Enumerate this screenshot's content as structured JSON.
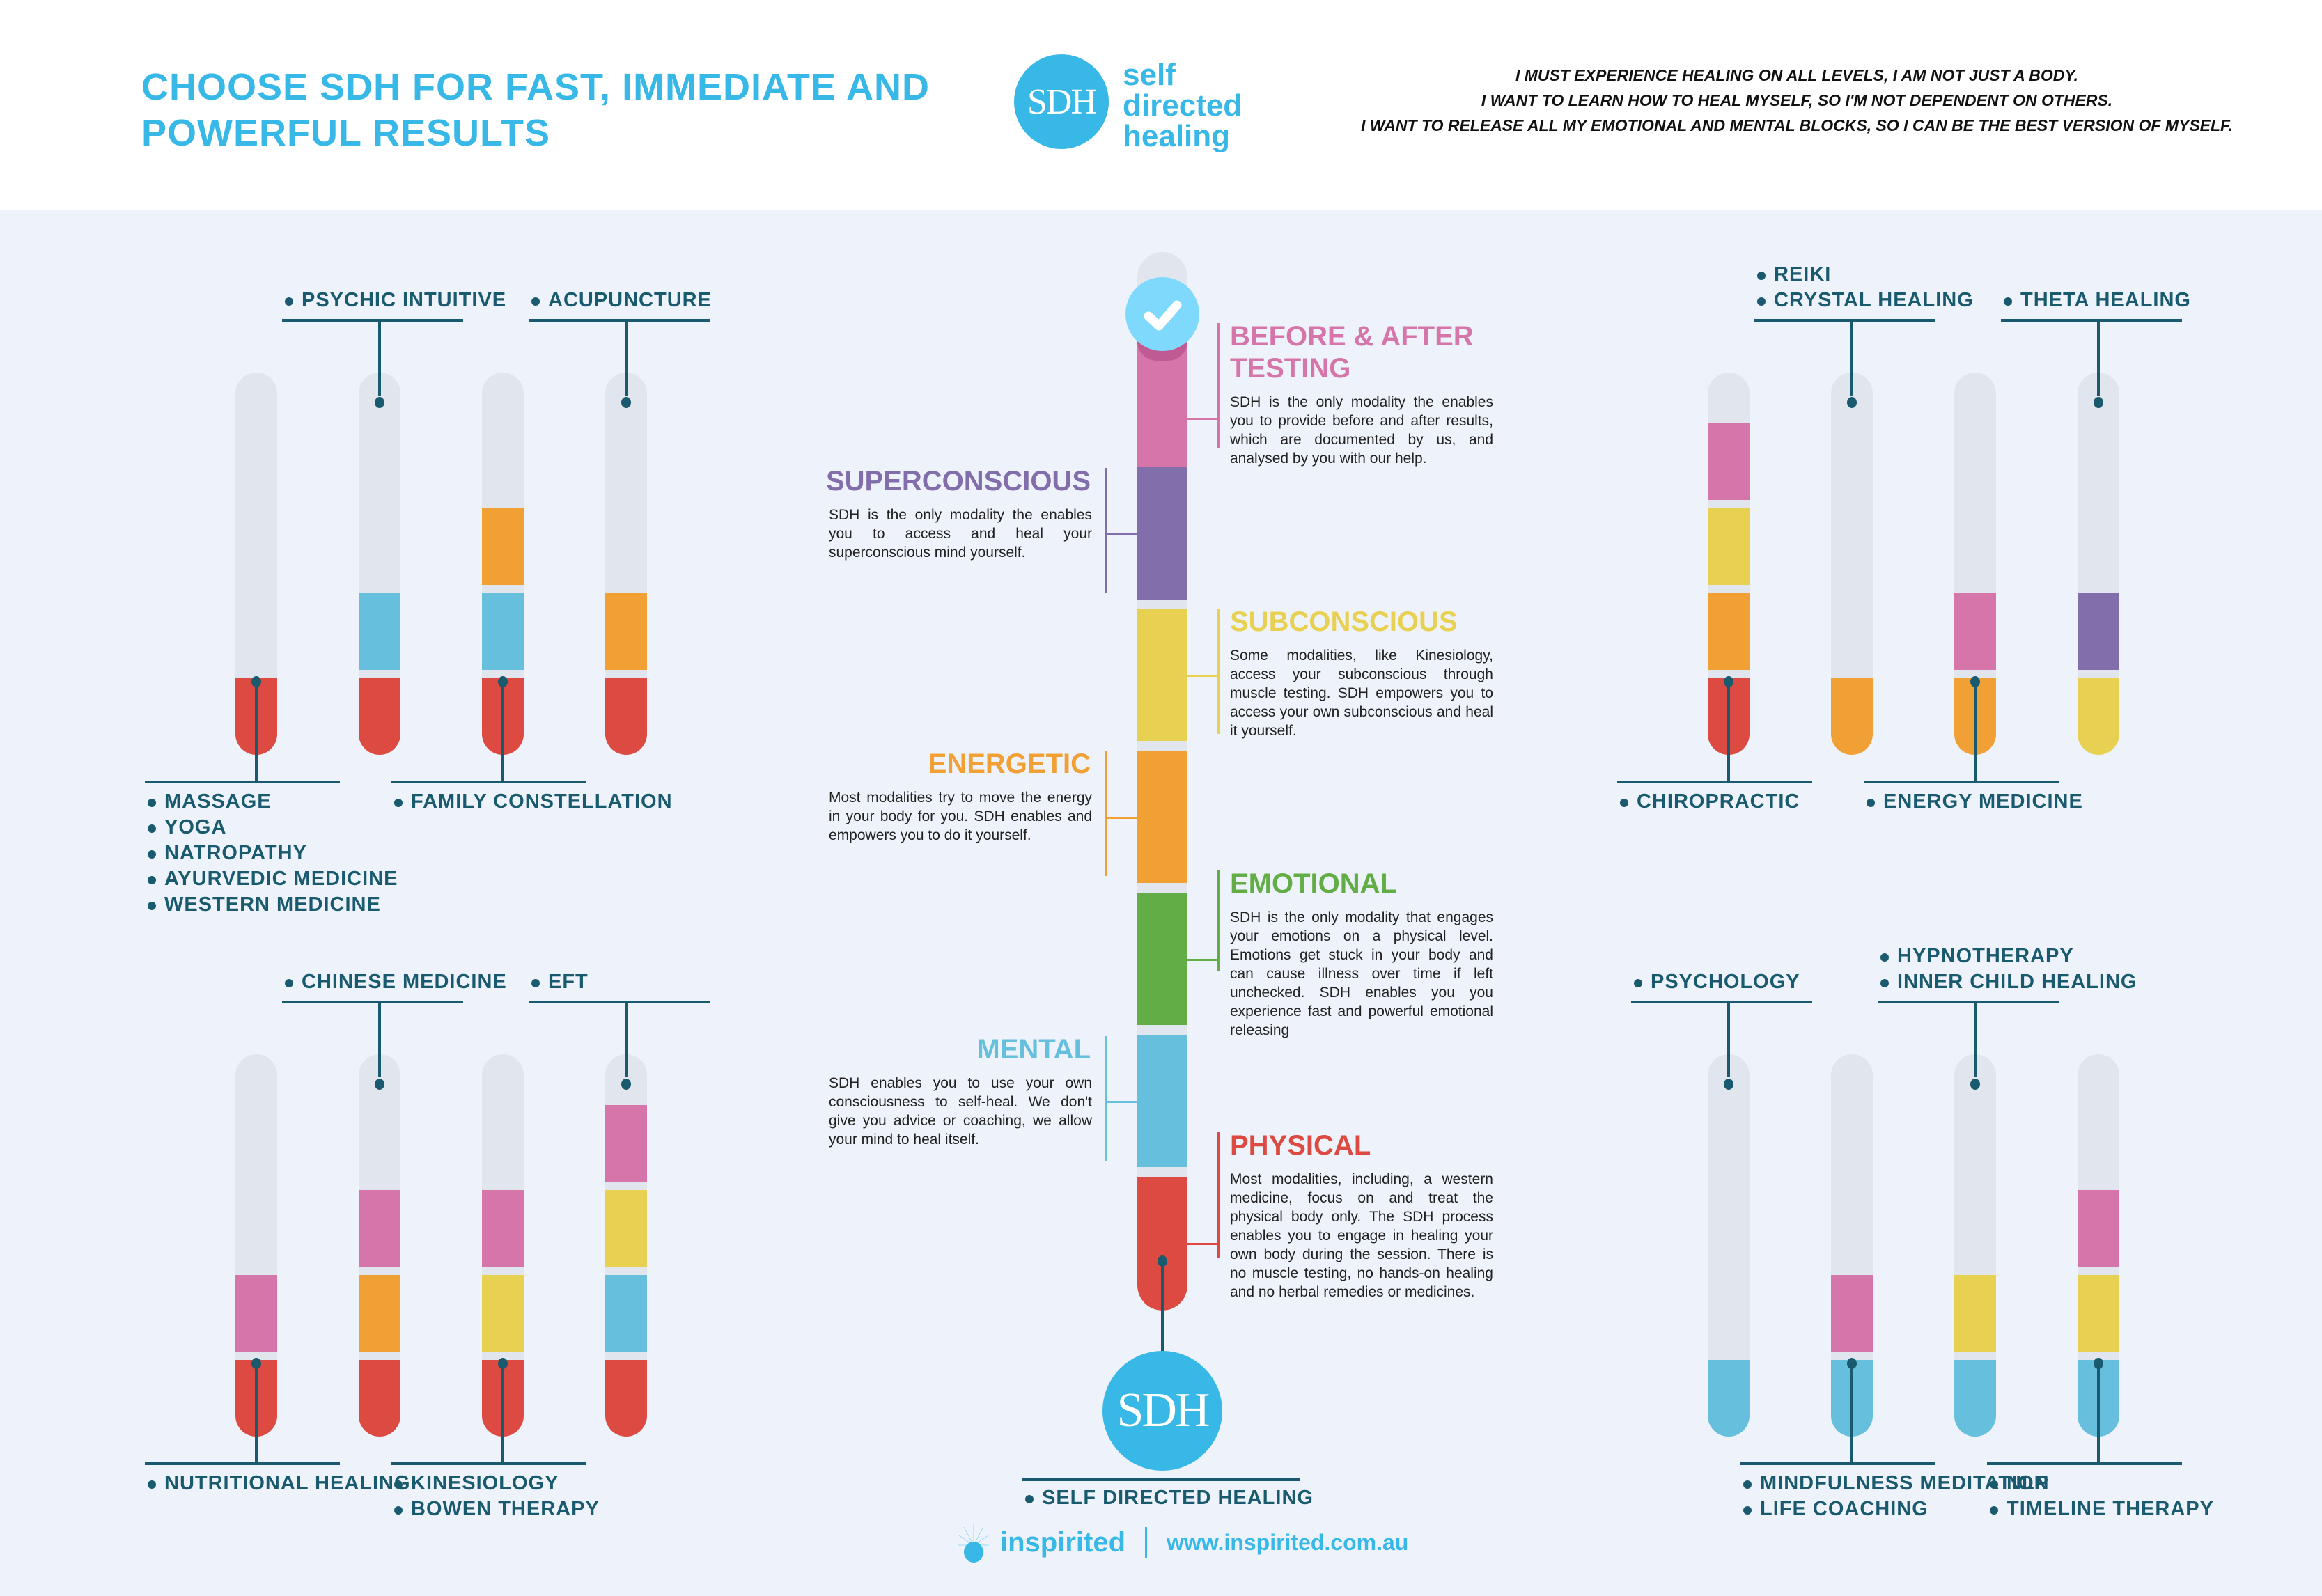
{
  "header": {
    "title": "CHOOSE SDH FOR FAST, IMMEDIATE AND POWERFUL RESULTS",
    "logo_mark": "SDH",
    "logo_words": [
      "self",
      "directed",
      "healing"
    ],
    "mantras": [
      "I MUST EXPERIENCE HEALING ON ALL LEVELS, I AM NOT JUST A BODY.",
      "I WANT TO LEARN HOW TO HEAL MYSELF, SO I'M NOT DEPENDENT ON OTHERS.",
      "I WANT TO RELEASE ALL MY EMOTIONAL AND MENTAL BLOCKS, SO I CAN BE THE BEST VERSION OF MYSELF."
    ]
  },
  "colors": {
    "accent": "#37b8e6",
    "label": "#1a5a6e",
    "background": "#eef3fb",
    "tube_empty": "#e1e5ed",
    "physical": "#dc4a42",
    "mental": "#66bfdc",
    "emotional": "#62ad45",
    "energetic": "#f1a036",
    "subconscious": "#e8d152",
    "superconscious": "#836eac",
    "testing": "#d675aa",
    "check": "#7ed9fc"
  },
  "levels_legend": [
    "physical",
    "mental",
    "energetic",
    "subconscious",
    "superconscious",
    "testing"
  ],
  "tube_groups": [
    {
      "name": "top-left",
      "tubes": [
        {
          "levels": [
            "physical"
          ]
        },
        {
          "levels": [
            "physical",
            "mental"
          ]
        },
        {
          "levels": [
            "physical",
            "mental",
            "energetic"
          ]
        },
        {
          "levels": [
            "physical",
            "energetic"
          ]
        }
      ],
      "top_labels": [
        {
          "tube": 1,
          "items": [
            "PSYCHIC INTUITIVE"
          ]
        },
        {
          "tube": 3,
          "items": [
            "ACUPUNCTURE"
          ]
        }
      ],
      "bottom_labels": [
        {
          "tube": 0,
          "items": [
            "MASSAGE",
            "YOGA",
            "NATROPATHY",
            "AYURVEDIC MEDICINE",
            "WESTERN MEDICINE"
          ]
        },
        {
          "tube": 2,
          "items": [
            "FAMILY CONSTELLATION"
          ]
        }
      ]
    },
    {
      "name": "bottom-left",
      "tubes": [
        {
          "levels": [
            "physical",
            "testing"
          ]
        },
        {
          "levels": [
            "physical",
            "energetic",
            "testing"
          ]
        },
        {
          "levels": [
            "physical",
            "subconscious",
            "testing"
          ]
        },
        {
          "levels": [
            "physical",
            "mental",
            "subconscious",
            "testing"
          ]
        }
      ],
      "top_labels": [
        {
          "tube": 1,
          "items": [
            "CHINESE MEDICINE"
          ]
        },
        {
          "tube": 3,
          "items": [
            "EFT"
          ]
        }
      ],
      "bottom_labels": [
        {
          "tube": 0,
          "items": [
            "NUTRITIONAL HEALING"
          ]
        },
        {
          "tube": 2,
          "items": [
            "KINESIOLOGY",
            "BOWEN THERAPY"
          ]
        }
      ]
    },
    {
      "name": "top-right",
      "tubes": [
        {
          "levels": [
            "physical",
            "energetic",
            "subconscious",
            "testing"
          ]
        },
        {
          "levels": [
            "energetic"
          ]
        },
        {
          "levels": [
            "energetic",
            "testing"
          ]
        },
        {
          "levels": [
            "subconscious",
            "superconscious"
          ]
        }
      ],
      "top_labels": [
        {
          "tube": 1,
          "items": [
            "REIKI",
            "CRYSTAL HEALING"
          ]
        },
        {
          "tube": 3,
          "items": [
            "THETA HEALING"
          ]
        }
      ],
      "bottom_labels": [
        {
          "tube": 0,
          "items": [
            "CHIROPRACTIC"
          ]
        },
        {
          "tube": 2,
          "items": [
            "ENERGY MEDICINE"
          ]
        }
      ]
    },
    {
      "name": "bottom-right",
      "tubes": [
        {
          "levels": [
            "mental"
          ]
        },
        {
          "levels": [
            "mental",
            "testing"
          ]
        },
        {
          "levels": [
            "mental",
            "subconscious"
          ]
        },
        {
          "levels": [
            "mental",
            "subconscious",
            "testing"
          ]
        }
      ],
      "top_labels": [
        {
          "tube": 0,
          "items": [
            "PSYCHOLOGY"
          ]
        },
        {
          "tube": 2,
          "items": [
            "HYPNOTHERAPY",
            "INNER CHILD HEALING"
          ]
        }
      ],
      "bottom_labels": [
        {
          "tube": 1,
          "items": [
            "MINDFULNESS MEDITATION",
            "LIFE COACHING"
          ]
        },
        {
          "tube": 3,
          "items": [
            "NLP",
            "TIMELINE THERAPY"
          ]
        }
      ]
    }
  ],
  "center": {
    "categories": [
      {
        "key": "testing",
        "title": "BEFORE & AFTER TESTING",
        "side": "right",
        "text": "SDH is the only modality the enables you to provide before and after results, which are documented by us, and analysed by you with our help."
      },
      {
        "key": "superconscious",
        "title": "SUPERCONSCIOUS",
        "side": "left",
        "text": "SDH is the only modality the enables you to access and heal your superconscious mind yourself."
      },
      {
        "key": "subconscious",
        "title": "SUBCONSCIOUS",
        "side": "right",
        "text": "Some modalities, like Kinesiology, access your subconscious through muscle testing. SDH empowers you to access your own subconscious and heal it yourself."
      },
      {
        "key": "energetic",
        "title": "ENERGETIC",
        "side": "left",
        "text": "Most modalities try to move the energy in your body for you. SDH enables and empowers you to do it yourself."
      },
      {
        "key": "emotional",
        "title": "EMOTIONAL",
        "side": "right",
        "text": "SDH is the only modality that engages your emotions on a physical level. Emotions get stuck in your body and can cause illness over time if left unchecked. SDH enables you you experience fast and powerful emotional releasing"
      },
      {
        "key": "mental",
        "title": "MENTAL",
        "side": "left",
        "text": "SDH enables you to use your own consciousness to self-heal. We don't give you advice or coaching, we allow your mind to heal itself."
      },
      {
        "key": "physical",
        "title": "PHYSICAL",
        "side": "right",
        "text": "Most modalities, including, a western medicine, focus on and treat the physical body only. The SDH process enables you to engage in healing your own body during the session. There is no muscle testing, no hands-on healing and no herbal remedies or medicines."
      }
    ],
    "check_icon": "check-icon",
    "sdh_mark": "SDH",
    "sdh_label": "SELF DIRECTED HEALING"
  },
  "footer": {
    "brand": "inspirited",
    "url": "www.inspirited.com.au"
  }
}
